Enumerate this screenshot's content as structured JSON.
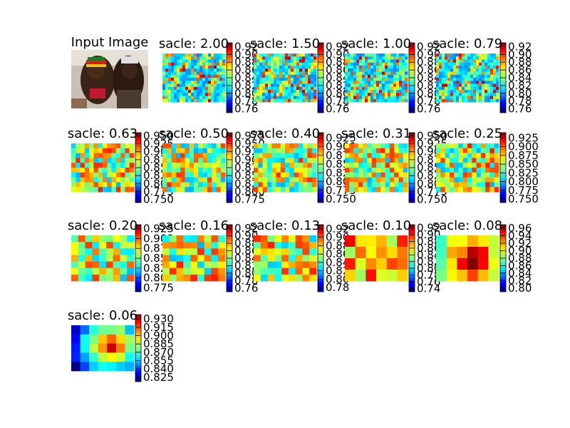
{
  "chart_data": {
    "type": "heatmap",
    "input_title": "Input Image",
    "panels": [
      {
        "title": "sacle: 2.00",
        "ticks": [
          "0.92",
          "0.90",
          "0.88",
          "0.86",
          "0.84",
          "0.82",
          "0.80",
          "0.78",
          "0.76"
        ],
        "range": [
          0.75,
          0.93
        ],
        "pattern": "fine"
      },
      {
        "title": "sacle: 1.50",
        "ticks": [
          "0.92",
          "0.90",
          "0.88",
          "0.86",
          "0.84",
          "0.82",
          "0.80",
          "0.78",
          "0.76"
        ],
        "range": [
          0.75,
          0.93
        ],
        "pattern": "fine"
      },
      {
        "title": "sacle: 1.00",
        "ticks": [
          "0.92",
          "0.90",
          "0.88",
          "0.86",
          "0.84",
          "0.82",
          "0.80",
          "0.78",
          "0.76"
        ],
        "range": [
          0.75,
          0.93
        ],
        "pattern": "fine"
      },
      {
        "title": "sacle: 0.79",
        "ticks": [
          "0.92",
          "0.90",
          "0.88",
          "0.86",
          "0.84",
          "0.82",
          "0.80",
          "0.78",
          "0.76"
        ],
        "range": [
          0.75,
          0.93
        ],
        "pattern": "fine"
      },
      {
        "title": "sacle: 0.63",
        "ticks": [
          "0.950",
          "0.925",
          "0.900",
          "0.875",
          "0.850",
          "0.825",
          "0.800",
          "0.775",
          "0.750"
        ],
        "range": [
          0.74,
          0.96
        ],
        "pattern": "medium"
      },
      {
        "title": "sacle: 0.50",
        "ticks": [
          "0.975",
          "0.950",
          "0.925",
          "0.900",
          "0.875",
          "0.850",
          "0.825",
          "0.800",
          "0.775"
        ],
        "range": [
          0.765,
          0.985
        ],
        "pattern": "medium"
      },
      {
        "title": "sacle: 0.40",
        "ticks": [
          "0.925",
          "0.900",
          "0.875",
          "0.850",
          "0.825",
          "0.800",
          "0.775",
          "0.750"
        ],
        "range": [
          0.74,
          0.94
        ],
        "pattern": "medium"
      },
      {
        "title": "sacle: 0.31",
        "ticks": [
          "0.950",
          "0.925",
          "0.900",
          "0.875",
          "0.850",
          "0.825",
          "0.800",
          "0.775",
          "0.750"
        ],
        "range": [
          0.74,
          0.96
        ],
        "pattern": "medium"
      },
      {
        "title": "sacle: 0.25",
        "ticks": [
          "0.925",
          "0.900",
          "0.875",
          "0.850",
          "0.825",
          "0.800",
          "0.775",
          "0.750"
        ],
        "range": [
          0.74,
          0.94
        ],
        "pattern": "medium"
      },
      {
        "title": "sacle: 0.20",
        "ticks": [
          "0.925",
          "0.900",
          "0.875",
          "0.850",
          "0.825",
          "0.800",
          "0.775"
        ],
        "range": [
          0.765,
          0.935
        ],
        "pattern": "coarse"
      },
      {
        "title": "sacle: 0.16",
        "ticks": [
          "0.92",
          "0.90",
          "0.88",
          "0.86",
          "0.84",
          "0.82",
          "0.80",
          "0.78",
          "0.76"
        ],
        "range": [
          0.75,
          0.93
        ],
        "pattern": "coarse"
      },
      {
        "title": "sacle: 0.13",
        "ticks": [
          "0.92",
          "0.90",
          "0.88",
          "0.86",
          "0.84",
          "0.82",
          "0.80",
          "0.78"
        ],
        "range": [
          0.77,
          0.93
        ],
        "pattern": "coarse"
      },
      {
        "title": "sacle: 0.10",
        "ticks": [
          "0.92",
          "0.90",
          "0.88",
          "0.86",
          "0.84",
          "0.82",
          "0.80",
          "0.78",
          "0.76",
          "0.74"
        ],
        "range": [
          0.73,
          0.93
        ],
        "pattern": "block"
      },
      {
        "title": "sacle: 0.08",
        "ticks": [
          "0.96",
          "0.94",
          "0.92",
          "0.90",
          "0.88",
          "0.86",
          "0.84",
          "0.82",
          "0.80"
        ],
        "range": [
          0.79,
          0.97
        ],
        "pattern": "block"
      },
      {
        "title": "sacle: 0.06",
        "ticks": [
          "0.930",
          "0.915",
          "0.900",
          "0.885",
          "0.870",
          "0.855",
          "0.840",
          "0.825"
        ],
        "range": [
          0.817,
          0.938
        ],
        "pattern": "smooth"
      }
    ]
  }
}
